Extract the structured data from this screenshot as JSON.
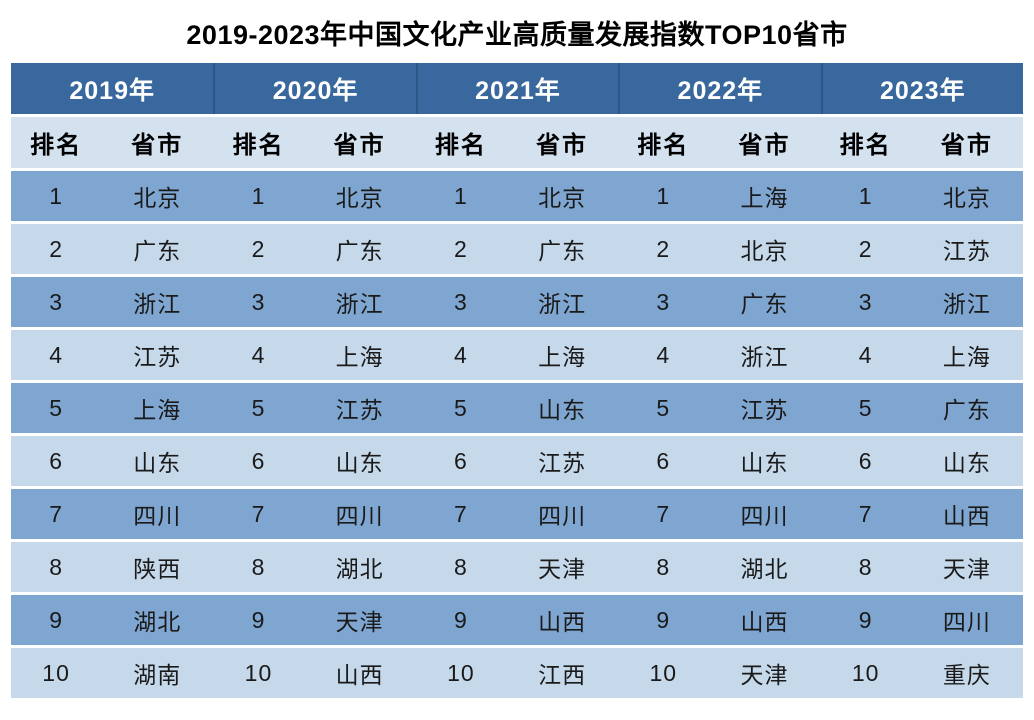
{
  "title": "2019-2023年中国文化产业高质量发展指数TOP10省市",
  "colors": {
    "header_bg": "#38689D",
    "header_divider": "#2C5785",
    "subheader_bg": "#D4E1EF",
    "row_odd_bg": "#7FA6D0",
    "row_even_bg": "#C6D9EB",
    "text_dark": "#1A1A1A",
    "text_light": "#FFFFFF",
    "page_bg": "#FFFFFF"
  },
  "table": {
    "years": [
      "2019年",
      "2020年",
      "2021年",
      "2022年",
      "2023年"
    ],
    "sub_headers": {
      "rank": "排名",
      "province": "省市"
    },
    "rows": [
      [
        "1",
        "北京",
        "1",
        "北京",
        "1",
        "北京",
        "1",
        "上海",
        "1",
        "北京"
      ],
      [
        "2",
        "广东",
        "2",
        "广东",
        "2",
        "广东",
        "2",
        "北京",
        "2",
        "江苏"
      ],
      [
        "3",
        "浙江",
        "3",
        "浙江",
        "3",
        "浙江",
        "3",
        "广东",
        "3",
        "浙江"
      ],
      [
        "4",
        "江苏",
        "4",
        "上海",
        "4",
        "上海",
        "4",
        "浙江",
        "4",
        "上海"
      ],
      [
        "5",
        "上海",
        "5",
        "江苏",
        "5",
        "山东",
        "5",
        "江苏",
        "5",
        "广东"
      ],
      [
        "6",
        "山东",
        "6",
        "山东",
        "6",
        "江苏",
        "6",
        "山东",
        "6",
        "山东"
      ],
      [
        "7",
        "四川",
        "7",
        "四川",
        "7",
        "四川",
        "7",
        "四川",
        "7",
        "山西"
      ],
      [
        "8",
        "陕西",
        "8",
        "湖北",
        "8",
        "天津",
        "8",
        "湖北",
        "8",
        "天津"
      ],
      [
        "9",
        "湖北",
        "9",
        "天津",
        "9",
        "山西",
        "9",
        "山西",
        "9",
        "四川"
      ],
      [
        "10",
        "湖南",
        "10",
        "山西",
        "10",
        "江西",
        "10",
        "天津",
        "10",
        "重庆"
      ]
    ]
  },
  "chart_data": {
    "type": "table",
    "title": "2019-2023年中国文化产业高质量发展指数TOP10省市",
    "column_groups": [
      "2019年",
      "2020年",
      "2021年",
      "2022年",
      "2023年"
    ],
    "sub_columns": [
      "排名",
      "省市"
    ],
    "ranks": [
      1,
      2,
      3,
      4,
      5,
      6,
      7,
      8,
      9,
      10
    ],
    "rankings": {
      "2019年": [
        "北京",
        "广东",
        "浙江",
        "江苏",
        "上海",
        "山东",
        "四川",
        "陕西",
        "湖北",
        "湖南"
      ],
      "2020年": [
        "北京",
        "广东",
        "浙江",
        "上海",
        "江苏",
        "山东",
        "四川",
        "湖北",
        "天津",
        "山西"
      ],
      "2021年": [
        "北京",
        "广东",
        "浙江",
        "上海",
        "山东",
        "江苏",
        "四川",
        "天津",
        "山西",
        "江西"
      ],
      "2022年": [
        "上海",
        "北京",
        "广东",
        "浙江",
        "江苏",
        "山东",
        "四川",
        "湖北",
        "山西",
        "天津"
      ],
      "2023年": [
        "北京",
        "江苏",
        "浙江",
        "上海",
        "广东",
        "山东",
        "山西",
        "天津",
        "四川",
        "重庆"
      ]
    }
  }
}
